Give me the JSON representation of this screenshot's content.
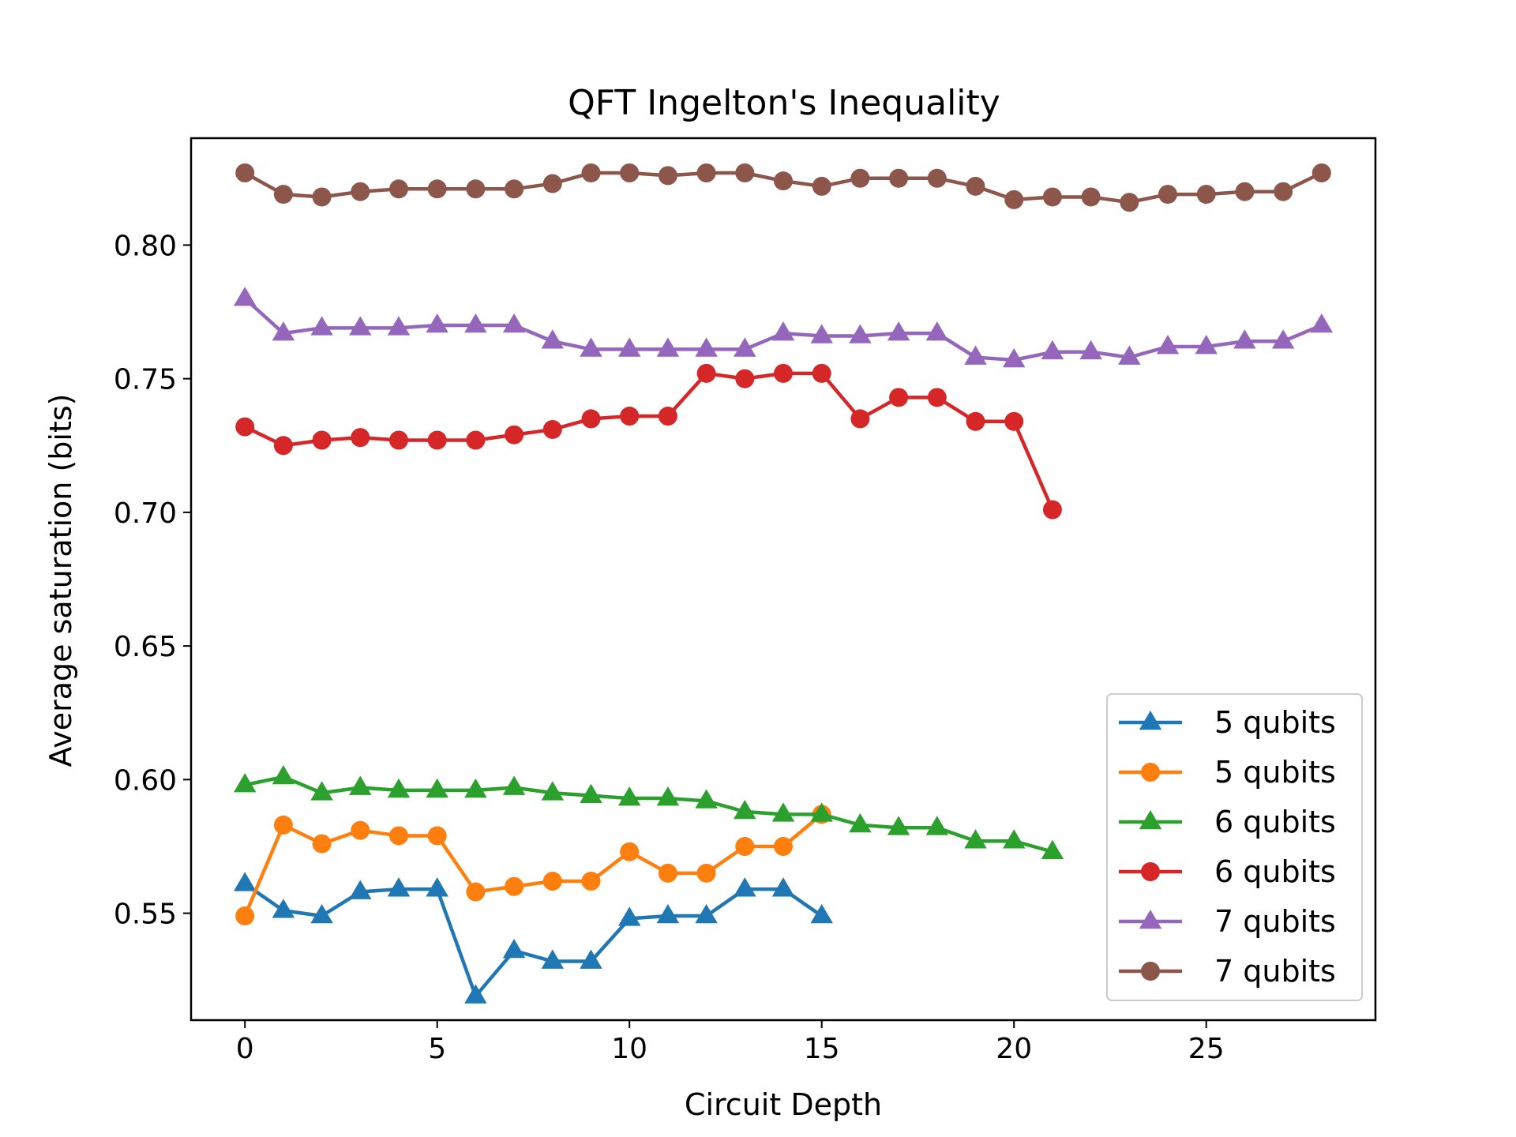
{
  "chart_data": {
    "type": "line",
    "title": "QFT Ingelton's Inequality",
    "xlabel": "Circuit Depth",
    "ylabel": "Average saturation (bits)",
    "xlim": [
      -1.4,
      29.4
    ],
    "ylim": [
      0.51,
      0.84
    ],
    "xticks": [
      0,
      5,
      10,
      15,
      20,
      25
    ],
    "xtick_labels": [
      "0",
      "5",
      "10",
      "15",
      "20",
      "25"
    ],
    "yticks": [
      0.55,
      0.6,
      0.65,
      0.7,
      0.75,
      0.8
    ],
    "ytick_labels": [
      "0.55",
      "0.60",
      "0.65",
      "0.70",
      "0.75",
      "0.80"
    ],
    "grid": false,
    "legend_position": "lower-right",
    "series": [
      {
        "name": "5 qubits",
        "color": "#1f77b4",
        "marker": "triangle",
        "x": [
          0,
          1,
          2,
          3,
          4,
          5,
          6,
          7,
          8,
          9,
          10,
          11,
          12,
          13,
          14,
          15
        ],
        "values": [
          0.561,
          0.551,
          0.549,
          0.558,
          0.559,
          0.559,
          0.519,
          0.536,
          0.532,
          0.532,
          0.548,
          0.549,
          0.549,
          0.559,
          0.559,
          0.549
        ]
      },
      {
        "name": "5 qubits",
        "color": "#ff7f0e",
        "marker": "circle",
        "x": [
          0,
          1,
          2,
          3,
          4,
          5,
          6,
          7,
          8,
          9,
          10,
          11,
          12,
          13,
          14,
          15
        ],
        "values": [
          0.549,
          0.583,
          0.576,
          0.581,
          0.579,
          0.579,
          0.558,
          0.56,
          0.562,
          0.562,
          0.573,
          0.565,
          0.565,
          0.575,
          0.575,
          0.587
        ]
      },
      {
        "name": "6 qubits",
        "color": "#2ca02c",
        "marker": "triangle",
        "x": [
          0,
          1,
          2,
          3,
          4,
          5,
          6,
          7,
          8,
          9,
          10,
          11,
          12,
          13,
          14,
          15,
          16,
          17,
          18,
          19,
          20,
          21
        ],
        "values": [
          0.598,
          0.601,
          0.595,
          0.597,
          0.596,
          0.596,
          0.596,
          0.597,
          0.595,
          0.594,
          0.593,
          0.593,
          0.592,
          0.588,
          0.587,
          0.587,
          0.583,
          0.582,
          0.582,
          0.577,
          0.577,
          0.573
        ]
      },
      {
        "name": "6 qubits",
        "color": "#d62728",
        "marker": "circle",
        "x": [
          0,
          1,
          2,
          3,
          4,
          5,
          6,
          7,
          8,
          9,
          10,
          11,
          12,
          13,
          14,
          15,
          16,
          17,
          18,
          19,
          20,
          21
        ],
        "values": [
          0.732,
          0.725,
          0.727,
          0.728,
          0.727,
          0.727,
          0.727,
          0.729,
          0.731,
          0.735,
          0.736,
          0.736,
          0.752,
          0.75,
          0.752,
          0.752,
          0.735,
          0.743,
          0.743,
          0.734,
          0.734,
          0.701
        ]
      },
      {
        "name": "7 qubits",
        "color": "#9467bd",
        "marker": "triangle",
        "x": [
          0,
          1,
          2,
          3,
          4,
          5,
          6,
          7,
          8,
          9,
          10,
          11,
          12,
          13,
          14,
          15,
          16,
          17,
          18,
          19,
          20,
          21,
          22,
          23,
          24,
          25,
          26,
          27,
          28
        ],
        "values": [
          0.78,
          0.767,
          0.769,
          0.769,
          0.769,
          0.77,
          0.77,
          0.77,
          0.764,
          0.761,
          0.761,
          0.761,
          0.761,
          0.761,
          0.767,
          0.766,
          0.766,
          0.767,
          0.767,
          0.758,
          0.757,
          0.76,
          0.76,
          0.758,
          0.762,
          0.762,
          0.764,
          0.764,
          0.77
        ]
      },
      {
        "name": "7 qubits",
        "color": "#8c564b",
        "marker": "circle",
        "x": [
          0,
          1,
          2,
          3,
          4,
          5,
          6,
          7,
          8,
          9,
          10,
          11,
          12,
          13,
          14,
          15,
          16,
          17,
          18,
          19,
          20,
          21,
          22,
          23,
          24,
          25,
          26,
          27,
          28
        ],
        "values": [
          0.827,
          0.819,
          0.818,
          0.82,
          0.821,
          0.821,
          0.821,
          0.821,
          0.823,
          0.827,
          0.827,
          0.826,
          0.827,
          0.827,
          0.824,
          0.822,
          0.825,
          0.825,
          0.825,
          0.822,
          0.817,
          0.818,
          0.818,
          0.816,
          0.819,
          0.819,
          0.82,
          0.82,
          0.827
        ]
      }
    ]
  }
}
